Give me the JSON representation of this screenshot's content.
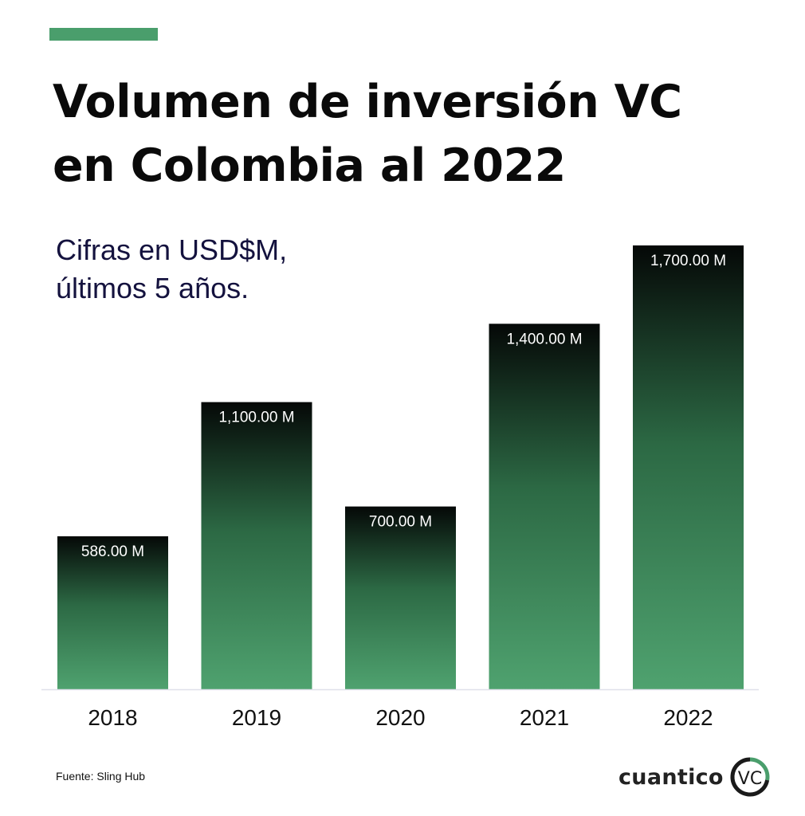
{
  "header": {
    "title_lines": [
      "Volumen de inversión VC",
      "en Colombia al 2022"
    ],
    "subtitle_lines": [
      "Cifras en USD$M,",
      "últimos 5 años."
    ]
  },
  "footer": {
    "source": "Fuente: Sling Hub",
    "brand_word": "cuantico",
    "brand_mark_text": "VC",
    "brand_icon": "cuantico-vc-logo"
  },
  "colors": {
    "accent": "#4a9e6c",
    "bar_top": "#050807",
    "bar_mid": "#2c6944",
    "bar_bottom": "#4fa26f",
    "bar_label": "#ffffff",
    "axis": "#dfe0ea",
    "tick_text": "#111111"
  },
  "chart_data": {
    "type": "bar",
    "categories": [
      "2018",
      "2019",
      "2020",
      "2021",
      "2022"
    ],
    "values": [
      586,
      1100,
      700,
      1400,
      1700
    ],
    "value_labels": [
      "586.00 M",
      "1,100.00 M",
      "700.00 M",
      "1,400.00 M",
      "1,700.00 M"
    ],
    "ylim": [
      0,
      1700
    ],
    "grid": false,
    "legend": "none",
    "unit": "USD$M"
  }
}
